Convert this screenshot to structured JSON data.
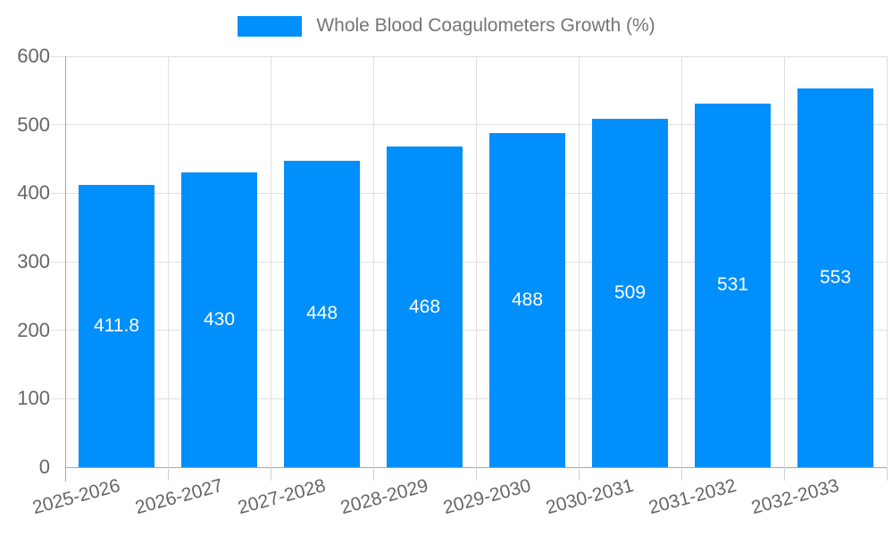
{
  "legend": {
    "label": "Whole Blood Coagulometers Growth (%)",
    "swatch_color": "#008FFB"
  },
  "chart_data": {
    "type": "bar",
    "title": "Whole Blood Coagulometers Growth (%)",
    "categories": [
      "2025-2026",
      "2026-2027",
      "2027-2028",
      "2028-2029",
      "2029-2030",
      "2030-2031",
      "2031-2032",
      "2032-2033"
    ],
    "values": [
      411.8,
      430,
      448,
      468,
      488,
      509,
      531,
      553
    ],
    "bar_labels": [
      "411.8",
      "430",
      "448",
      "468",
      "488",
      "509",
      "531",
      "553"
    ],
    "xlabel": "",
    "ylabel": "",
    "ylim": [
      0,
      600
    ],
    "ytick_step": 100,
    "ytick_labels": [
      "0",
      "100",
      "200",
      "300",
      "400",
      "500",
      "600"
    ],
    "grid": true,
    "legend_position": "top",
    "bar_value_label_position": "center"
  },
  "colors": {
    "bar": "#008FFB",
    "bar_label_text": "#ffffff",
    "axis_text": "#666666",
    "legend_text": "#757575",
    "gridline": "#e0e0e0",
    "axis_line": "#a6a6a6",
    "x_tick": "#d2d2d2",
    "background": "#ffffff"
  }
}
